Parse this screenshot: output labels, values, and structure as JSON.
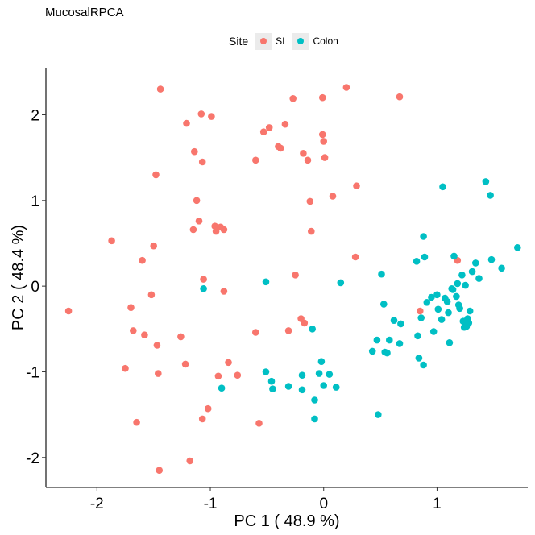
{
  "chart_data": {
    "type": "scatter",
    "title": "MucosalRPCA",
    "xlabel": "PC 1 ( 48.9 %)",
    "ylabel": "PC 2 ( 48.4 %)",
    "xlim": [
      -2.45,
      1.8
    ],
    "ylim": [
      -2.35,
      2.55
    ],
    "xticks": [
      -2,
      -1,
      0,
      1
    ],
    "yticks": [
      -2,
      -1,
      0,
      1,
      2
    ],
    "xtick_labels": [
      "-2",
      "-1",
      "0",
      "1"
    ],
    "ytick_labels": [
      "-2",
      "-1",
      "0",
      "1",
      "2"
    ],
    "grid": false,
    "legend": {
      "title": "Site",
      "position": "top"
    },
    "series": [
      {
        "name": "SI",
        "color": "#F8766D",
        "points": [
          [
            -2.25,
            -0.29
          ],
          [
            -1.87,
            0.53
          ],
          [
            -1.75,
            -0.96
          ],
          [
            -1.7,
            -0.25
          ],
          [
            -1.68,
            -0.52
          ],
          [
            -1.65,
            -1.59
          ],
          [
            -1.6,
            0.3
          ],
          [
            -1.58,
            -0.57
          ],
          [
            -1.52,
            -0.1
          ],
          [
            -1.5,
            0.47
          ],
          [
            -1.48,
            1.3
          ],
          [
            -1.47,
            -0.69
          ],
          [
            -1.46,
            -1.02
          ],
          [
            -1.45,
            -2.15
          ],
          [
            -1.44,
            2.3
          ],
          [
            -1.26,
            -0.59
          ],
          [
            -1.22,
            -0.91
          ],
          [
            -1.21,
            1.9
          ],
          [
            -1.18,
            -2.04
          ],
          [
            -1.15,
            0.66
          ],
          [
            -1.14,
            1.57
          ],
          [
            -1.12,
            1.0
          ],
          [
            -1.1,
            0.76
          ],
          [
            -1.08,
            2.01
          ],
          [
            -1.07,
            1.45
          ],
          [
            -1.07,
            -1.55
          ],
          [
            -1.06,
            0.08
          ],
          [
            -1.02,
            -1.43
          ],
          [
            -0.99,
            1.98
          ],
          [
            -0.96,
            0.7
          ],
          [
            -0.95,
            0.64
          ],
          [
            -0.93,
            -1.05
          ],
          [
            -0.91,
            0.69
          ],
          [
            -0.88,
            0.66
          ],
          [
            -0.88,
            -0.06
          ],
          [
            -0.84,
            -0.89
          ],
          [
            -0.76,
            -1.04
          ],
          [
            -0.6,
            1.47
          ],
          [
            -0.6,
            -0.54
          ],
          [
            -0.57,
            -1.6
          ],
          [
            -0.53,
            1.8
          ],
          [
            -0.48,
            1.85
          ],
          [
            -0.4,
            1.63
          ],
          [
            -0.38,
            1.61
          ],
          [
            -0.34,
            1.89
          ],
          [
            -0.31,
            -0.52
          ],
          [
            -0.27,
            2.19
          ],
          [
            -0.25,
            0.13
          ],
          [
            -0.2,
            -0.38
          ],
          [
            -0.18,
            1.55
          ],
          [
            -0.17,
            -0.43
          ],
          [
            -0.14,
            1.47
          ],
          [
            -0.12,
            0.99
          ],
          [
            -0.11,
            0.64
          ],
          [
            -0.01,
            1.77
          ],
          [
            -0.01,
            2.2
          ],
          [
            0.0,
            1.69
          ],
          [
            0.01,
            1.5
          ],
          [
            0.08,
            1.05
          ],
          [
            0.2,
            2.32
          ],
          [
            0.29,
            1.17
          ],
          [
            0.28,
            0.34
          ],
          [
            0.67,
            2.21
          ],
          [
            0.85,
            -0.29
          ],
          [
            1.18,
            0.3
          ]
        ]
      },
      {
        "name": "Colon",
        "color": "#00BFC4",
        "points": [
          [
            -1.06,
            -0.03
          ],
          [
            -0.9,
            -1.19
          ],
          [
            -0.51,
            0.05
          ],
          [
            -0.51,
            -1.0
          ],
          [
            -0.46,
            -1.11
          ],
          [
            -0.45,
            -1.2
          ],
          [
            -0.31,
            -1.17
          ],
          [
            -0.19,
            -1.21
          ],
          [
            -0.19,
            -1.04
          ],
          [
            -0.1,
            -0.5
          ],
          [
            -0.08,
            -1.55
          ],
          [
            -0.08,
            -1.33
          ],
          [
            -0.04,
            -1.02
          ],
          [
            -0.02,
            -0.88
          ],
          [
            0.0,
            -1.16
          ],
          [
            0.05,
            -1.03
          ],
          [
            0.11,
            -1.18
          ],
          [
            0.15,
            0.04
          ],
          [
            0.43,
            -0.76
          ],
          [
            0.47,
            -0.63
          ],
          [
            0.48,
            -1.5
          ],
          [
            0.51,
            0.14
          ],
          [
            0.53,
            -0.21
          ],
          [
            0.54,
            -0.77
          ],
          [
            0.56,
            -0.78
          ],
          [
            0.58,
            -0.63
          ],
          [
            0.62,
            -0.4
          ],
          [
            0.67,
            -0.67
          ],
          [
            0.68,
            -0.44
          ],
          [
            0.82,
            0.29
          ],
          [
            0.83,
            -0.58
          ],
          [
            0.84,
            -0.84
          ],
          [
            0.86,
            -0.37
          ],
          [
            0.88,
            -0.92
          ],
          [
            0.88,
            0.58
          ],
          [
            0.89,
            0.34
          ],
          [
            0.91,
            -0.19
          ],
          [
            0.95,
            -0.13
          ],
          [
            0.97,
            -0.53
          ],
          [
            1.0,
            -0.1
          ],
          [
            1.01,
            -0.27
          ],
          [
            1.04,
            -0.39
          ],
          [
            1.05,
            1.16
          ],
          [
            1.07,
            -0.14
          ],
          [
            1.09,
            -0.18
          ],
          [
            1.1,
            -0.31
          ],
          [
            1.11,
            -0.66
          ],
          [
            1.13,
            -0.03
          ],
          [
            1.14,
            -0.04
          ],
          [
            1.15,
            0.35
          ],
          [
            1.17,
            -0.12
          ],
          [
            1.18,
            0.03
          ],
          [
            1.19,
            -0.22
          ],
          [
            1.2,
            -0.26
          ],
          [
            1.22,
            0.13
          ],
          [
            1.23,
            -0.41
          ],
          [
            1.24,
            -0.48
          ],
          [
            1.25,
            0.01
          ],
          [
            1.26,
            -0.47
          ],
          [
            1.27,
            -0.38
          ],
          [
            1.28,
            -0.43
          ],
          [
            1.29,
            -0.29
          ],
          [
            1.31,
            0.17
          ],
          [
            1.34,
            0.27
          ],
          [
            1.37,
            0.09
          ],
          [
            1.43,
            1.22
          ],
          [
            1.47,
            1.06
          ],
          [
            1.48,
            0.31
          ],
          [
            1.57,
            0.21
          ],
          [
            1.71,
            0.45
          ]
        ]
      }
    ]
  }
}
